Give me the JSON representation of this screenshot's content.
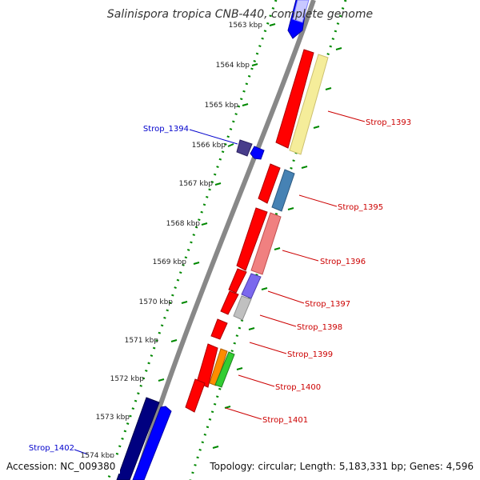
{
  "title": "Salinispora tropica CNB-440, complete genome",
  "footer": {
    "accession": "Accession: NC_009380",
    "topology": "Topology: circular; Length: 5,183,331 bp; Genes: 4,596"
  },
  "kbp_ticks": [
    "1563 kbp",
    "1564 kbp",
    "1565 kbp",
    "1566 kbp",
    "1567 kbp",
    "1568 kbp",
    "1569 kbp",
    "1570 kbp",
    "1571 kbp",
    "1572 kbp",
    "1573 kbp",
    "1574 kbp"
  ],
  "genes_right": [
    {
      "label": "Strop_1393",
      "color": "#cc0000"
    },
    {
      "label": "Strop_1395",
      "color": "#cc0000"
    },
    {
      "label": "Strop_1396",
      "color": "#cc0000"
    },
    {
      "label": "Strop_1397",
      "color": "#cc0000"
    },
    {
      "label": "Strop_1398",
      "color": "#cc0000"
    },
    {
      "label": "Strop_1399",
      "color": "#cc0000"
    },
    {
      "label": "Strop_1400",
      "color": "#cc0000"
    },
    {
      "label": "Strop_1401",
      "color": "#cc0000"
    }
  ],
  "genes_left": [
    {
      "label": "Strop_1394",
      "color": "#0000cc"
    },
    {
      "label": "Strop_1402",
      "color": "#0000cc"
    }
  ],
  "colors": {
    "forward_strand": "#ff0000",
    "reverse_strand": "#0000ff",
    "backbone": "#888888",
    "tick_dots": "#008800"
  }
}
